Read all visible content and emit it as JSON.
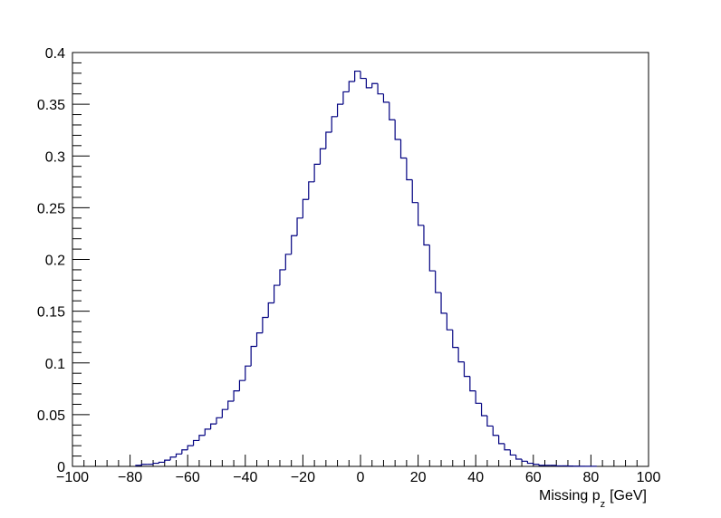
{
  "chart_data": {
    "type": "bar",
    "style": "step-histogram",
    "title": "",
    "xlabel": "Missing p_z [GeV]",
    "xlabel_main": "Missing p",
    "xlabel_sub": "z",
    "xlabel_unit": "[GeV]",
    "ylabel": "",
    "xlim": [
      -100,
      100
    ],
    "ylim": [
      0,
      0.4
    ],
    "x_ticks": [
      "−100",
      "−80",
      "−60",
      "−40",
      "−20",
      "0",
      "20",
      "40",
      "60",
      "80",
      "100"
    ],
    "y_ticks": [
      "0",
      "0.05",
      "0.1",
      "0.15",
      "0.2",
      "0.25",
      "0.3",
      "0.35",
      "0.4"
    ],
    "grid": false,
    "line_color": "#000080",
    "bin_width": 2,
    "series": [
      {
        "x": [
          -77,
          -75,
          -73,
          -71,
          -69,
          -67,
          -65,
          -63,
          -61,
          -59,
          -57,
          -55,
          -53,
          -51,
          -49,
          -47,
          -45,
          -43,
          -41,
          -39,
          -37,
          -35,
          -33,
          -31,
          -29,
          -27,
          -25,
          -23,
          -21,
          -19,
          -17,
          -15,
          -13,
          -11,
          -9,
          -7,
          -5,
          -3,
          -1,
          1,
          3,
          5,
          7,
          9,
          11,
          13,
          15,
          17,
          19,
          21,
          23,
          25,
          27,
          29,
          31,
          33,
          35,
          37,
          39,
          41,
          43,
          45,
          47,
          49,
          51,
          53,
          55,
          57,
          59,
          61,
          63,
          65,
          67,
          69,
          71,
          73,
          75,
          77,
          79,
          81
        ],
        "values": [
          0.001,
          0.002,
          0.002,
          0.003,
          0.004,
          0.006,
          0.009,
          0.012,
          0.016,
          0.02,
          0.025,
          0.03,
          0.036,
          0.041,
          0.047,
          0.055,
          0.063,
          0.073,
          0.083,
          0.097,
          0.116,
          0.129,
          0.144,
          0.158,
          0.175,
          0.19,
          0.205,
          0.223,
          0.24,
          0.258,
          0.275,
          0.292,
          0.307,
          0.323,
          0.338,
          0.35,
          0.362,
          0.372,
          0.382,
          0.375,
          0.366,
          0.37,
          0.36,
          0.352,
          0.335,
          0.316,
          0.298,
          0.277,
          0.255,
          0.233,
          0.214,
          0.189,
          0.168,
          0.148,
          0.132,
          0.115,
          0.101,
          0.087,
          0.073,
          0.061,
          0.049,
          0.039,
          0.03,
          0.022,
          0.016,
          0.011,
          0.007,
          0.005,
          0.003,
          0.002,
          0.001,
          0.001,
          0.001,
          0.0005,
          0.0005,
          0.0003,
          0.0002,
          0.0001,
          0.0001,
          0.0001
        ]
      }
    ]
  }
}
